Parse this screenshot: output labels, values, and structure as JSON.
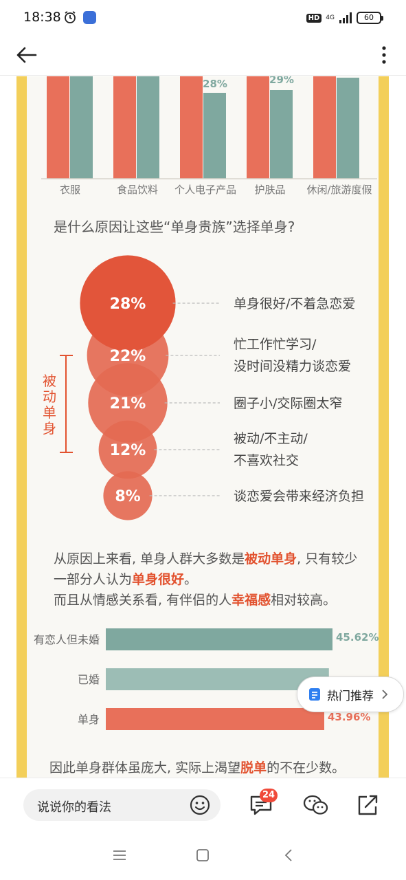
{
  "status_bar": {
    "time": "18:38",
    "hd": "HD",
    "network": "4G",
    "battery": "60"
  },
  "nav": {
    "back_icon": "arrow-left-icon",
    "more_icon": "more-vertical-icon"
  },
  "article": {
    "spend_categories": [
      "衣服",
      "食品饮料",
      "个人电子产品",
      "护肤品",
      "休闲/旅游度假"
    ],
    "spend_labels": [
      "28%",
      "29%"
    ],
    "question": "是什么原因让这些“单身贵族”选择单身?",
    "passive_label": "被动单身",
    "reasons": [
      {
        "pct": "28%",
        "value": 28,
        "line1": "单身很好/不着急恋爱",
        "line2": ""
      },
      {
        "pct": "22%",
        "value": 22,
        "line1": "忙工作忙学习/",
        "line2": "没时间没精力谈恋爱"
      },
      {
        "pct": "21%",
        "value": 21,
        "line1": "圈子小/交际圈太窄",
        "line2": ""
      },
      {
        "pct": "12%",
        "value": 12,
        "line1": "被动/不主动/",
        "line2": "不喜欢社交"
      },
      {
        "pct": "8%",
        "value": 8,
        "line1": "谈恋爱会带来经济负担",
        "line2": ""
      }
    ],
    "summary_line1_a": "从原因上来看, 单身人群大多数是",
    "summary_line1_b": "被动单身",
    "summary_line1_c": ", 只有较少",
    "summary_line2_a": "一部分人认为",
    "summary_line2_b": "单身很好",
    "summary_line2_c": "。",
    "summary_line3_a": "而且从情感关系看, 有伴侣的人",
    "summary_line3_b": "幸福感",
    "summary_line3_c": "相对较高。",
    "happiness_groups": [
      {
        "label": "有恋人但未婚",
        "pct_label": "45.62%",
        "value": 45.62,
        "color": "#7fa89f"
      },
      {
        "label": "已婚",
        "pct_label": "",
        "value": 44.9,
        "color": "#9cbdb5"
      },
      {
        "label": "单身",
        "pct_label": "43.96%",
        "value": 43.96,
        "color": "#e8705a"
      }
    ],
    "conclusion_a": "因此单身群体虽庞大, 实际上渴望",
    "conclusion_b": "脱单",
    "conclusion_c": "的不在少数。",
    "colors": {
      "coral": "#e8705a",
      "teal": "#7fa89f",
      "red_text": "#e2522f",
      "frame": "#f3cf5a"
    }
  },
  "hot_recommend": {
    "label": "热门推荐",
    "icon": "document-icon"
  },
  "comment_bar": {
    "placeholder": "说说你的看法",
    "comment_count": "24",
    "icons": [
      "emoji-icon",
      "comment-icon",
      "wechat-icon",
      "share-icon"
    ]
  },
  "system_nav": [
    "menu-icon",
    "home-square-icon",
    "back-chevron-icon"
  ]
}
